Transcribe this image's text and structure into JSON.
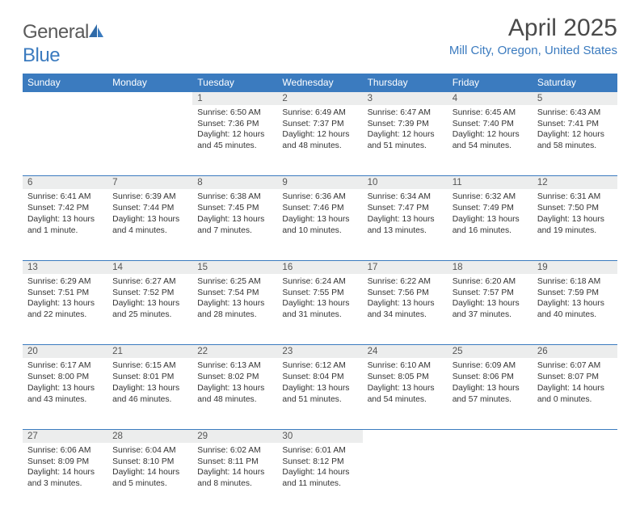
{
  "brand": {
    "part1": "General",
    "part2": "Blue"
  },
  "title": "April 2025",
  "location": "Mill City, Oregon, United States",
  "colors": {
    "header_bg": "#3b7bbf",
    "header_text": "#ffffff",
    "daynum_bg": "#eceded",
    "rule": "#3b7bbf",
    "body_text": "#333333",
    "brand_gray": "#5a5a5a",
    "brand_blue": "#3b7bbf"
  },
  "weekdays": [
    "Sunday",
    "Monday",
    "Tuesday",
    "Wednesday",
    "Thursday",
    "Friday",
    "Saturday"
  ],
  "weeks": [
    [
      null,
      null,
      {
        "n": "1",
        "sr": "Sunrise: 6:50 AM",
        "ss": "Sunset: 7:36 PM",
        "dl": "Daylight: 12 hours and 45 minutes."
      },
      {
        "n": "2",
        "sr": "Sunrise: 6:49 AM",
        "ss": "Sunset: 7:37 PM",
        "dl": "Daylight: 12 hours and 48 minutes."
      },
      {
        "n": "3",
        "sr": "Sunrise: 6:47 AM",
        "ss": "Sunset: 7:39 PM",
        "dl": "Daylight: 12 hours and 51 minutes."
      },
      {
        "n": "4",
        "sr": "Sunrise: 6:45 AM",
        "ss": "Sunset: 7:40 PM",
        "dl": "Daylight: 12 hours and 54 minutes."
      },
      {
        "n": "5",
        "sr": "Sunrise: 6:43 AM",
        "ss": "Sunset: 7:41 PM",
        "dl": "Daylight: 12 hours and 58 minutes."
      }
    ],
    [
      {
        "n": "6",
        "sr": "Sunrise: 6:41 AM",
        "ss": "Sunset: 7:42 PM",
        "dl": "Daylight: 13 hours and 1 minute."
      },
      {
        "n": "7",
        "sr": "Sunrise: 6:39 AM",
        "ss": "Sunset: 7:44 PM",
        "dl": "Daylight: 13 hours and 4 minutes."
      },
      {
        "n": "8",
        "sr": "Sunrise: 6:38 AM",
        "ss": "Sunset: 7:45 PM",
        "dl": "Daylight: 13 hours and 7 minutes."
      },
      {
        "n": "9",
        "sr": "Sunrise: 6:36 AM",
        "ss": "Sunset: 7:46 PM",
        "dl": "Daylight: 13 hours and 10 minutes."
      },
      {
        "n": "10",
        "sr": "Sunrise: 6:34 AM",
        "ss": "Sunset: 7:47 PM",
        "dl": "Daylight: 13 hours and 13 minutes."
      },
      {
        "n": "11",
        "sr": "Sunrise: 6:32 AM",
        "ss": "Sunset: 7:49 PM",
        "dl": "Daylight: 13 hours and 16 minutes."
      },
      {
        "n": "12",
        "sr": "Sunrise: 6:31 AM",
        "ss": "Sunset: 7:50 PM",
        "dl": "Daylight: 13 hours and 19 minutes."
      }
    ],
    [
      {
        "n": "13",
        "sr": "Sunrise: 6:29 AM",
        "ss": "Sunset: 7:51 PM",
        "dl": "Daylight: 13 hours and 22 minutes."
      },
      {
        "n": "14",
        "sr": "Sunrise: 6:27 AM",
        "ss": "Sunset: 7:52 PM",
        "dl": "Daylight: 13 hours and 25 minutes."
      },
      {
        "n": "15",
        "sr": "Sunrise: 6:25 AM",
        "ss": "Sunset: 7:54 PM",
        "dl": "Daylight: 13 hours and 28 minutes."
      },
      {
        "n": "16",
        "sr": "Sunrise: 6:24 AM",
        "ss": "Sunset: 7:55 PM",
        "dl": "Daylight: 13 hours and 31 minutes."
      },
      {
        "n": "17",
        "sr": "Sunrise: 6:22 AM",
        "ss": "Sunset: 7:56 PM",
        "dl": "Daylight: 13 hours and 34 minutes."
      },
      {
        "n": "18",
        "sr": "Sunrise: 6:20 AM",
        "ss": "Sunset: 7:57 PM",
        "dl": "Daylight: 13 hours and 37 minutes."
      },
      {
        "n": "19",
        "sr": "Sunrise: 6:18 AM",
        "ss": "Sunset: 7:59 PM",
        "dl": "Daylight: 13 hours and 40 minutes."
      }
    ],
    [
      {
        "n": "20",
        "sr": "Sunrise: 6:17 AM",
        "ss": "Sunset: 8:00 PM",
        "dl": "Daylight: 13 hours and 43 minutes."
      },
      {
        "n": "21",
        "sr": "Sunrise: 6:15 AM",
        "ss": "Sunset: 8:01 PM",
        "dl": "Daylight: 13 hours and 46 minutes."
      },
      {
        "n": "22",
        "sr": "Sunrise: 6:13 AM",
        "ss": "Sunset: 8:02 PM",
        "dl": "Daylight: 13 hours and 48 minutes."
      },
      {
        "n": "23",
        "sr": "Sunrise: 6:12 AM",
        "ss": "Sunset: 8:04 PM",
        "dl": "Daylight: 13 hours and 51 minutes."
      },
      {
        "n": "24",
        "sr": "Sunrise: 6:10 AM",
        "ss": "Sunset: 8:05 PM",
        "dl": "Daylight: 13 hours and 54 minutes."
      },
      {
        "n": "25",
        "sr": "Sunrise: 6:09 AM",
        "ss": "Sunset: 8:06 PM",
        "dl": "Daylight: 13 hours and 57 minutes."
      },
      {
        "n": "26",
        "sr": "Sunrise: 6:07 AM",
        "ss": "Sunset: 8:07 PM",
        "dl": "Daylight: 14 hours and 0 minutes."
      }
    ],
    [
      {
        "n": "27",
        "sr": "Sunrise: 6:06 AM",
        "ss": "Sunset: 8:09 PM",
        "dl": "Daylight: 14 hours and 3 minutes."
      },
      {
        "n": "28",
        "sr": "Sunrise: 6:04 AM",
        "ss": "Sunset: 8:10 PM",
        "dl": "Daylight: 14 hours and 5 minutes."
      },
      {
        "n": "29",
        "sr": "Sunrise: 6:02 AM",
        "ss": "Sunset: 8:11 PM",
        "dl": "Daylight: 14 hours and 8 minutes."
      },
      {
        "n": "30",
        "sr": "Sunrise: 6:01 AM",
        "ss": "Sunset: 8:12 PM",
        "dl": "Daylight: 14 hours and 11 minutes."
      },
      null,
      null,
      null
    ]
  ]
}
